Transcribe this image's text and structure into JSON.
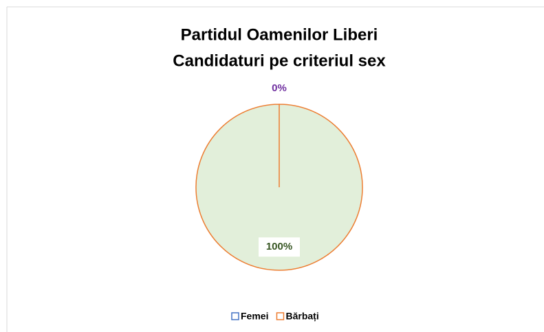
{
  "chart_data": {
    "type": "pie",
    "title": [
      "Partidul Oamenilor Liberi",
      "Candidaturi pe criteriul sex"
    ],
    "categories": [
      "Femei",
      "Bărbați"
    ],
    "values": [
      0,
      100
    ],
    "value_labels": [
      "0%",
      "100%"
    ],
    "colors": [
      "#dae3f3",
      "#e2efda"
    ],
    "edge_colors": [
      "#4472c4",
      "#ed7d31"
    ],
    "label_colors": [
      "#7030a0",
      "#375623"
    ],
    "legend": "bottom"
  }
}
